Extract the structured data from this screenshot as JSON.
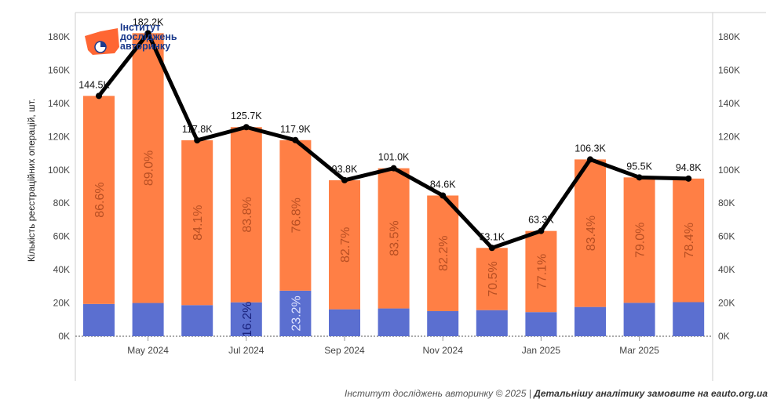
{
  "chart_data": {
    "type": "bar",
    "stacked": true,
    "ylabel": "Кількість реєстраційних операцій, шт.",
    "ylim": [
      0,
      180000
    ],
    "yticks": [
      "0K",
      "20K",
      "40K",
      "60K",
      "80K",
      "100K",
      "120K",
      "140K",
      "160K",
      "180K"
    ],
    "ytick_values": [
      0,
      20000,
      40000,
      60000,
      80000,
      100000,
      120000,
      140000,
      160000,
      180000
    ],
    "x_tick_labels": [
      {
        "index": 1,
        "label": "May 2024"
      },
      {
        "index": 3,
        "label": "Jul 2024"
      },
      {
        "index": 5,
        "label": "Sep 2024"
      },
      {
        "index": 7,
        "label": "Nov 2024"
      },
      {
        "index": 9,
        "label": "Jan 2025"
      },
      {
        "index": 11,
        "label": "Mar 2025"
      }
    ],
    "totals": [
      144500,
      182200,
      117800,
      125700,
      117900,
      93800,
      101000,
      84600,
      53100,
      63300,
      106300,
      95500,
      94800
    ],
    "total_labels": [
      "144.5K",
      "182.2K",
      "117.8K",
      "125.7K",
      "117.9K",
      "93.8K",
      "101.0K",
      "84.6K",
      "53.1K",
      "63.3K",
      "106.3K",
      "95.5K",
      "94.8K"
    ],
    "series": [
      {
        "values": [
          19400,
          20000,
          18700,
          20400,
          27400,
          16200,
          16700,
          15100,
          15700,
          14500,
          17600,
          20100,
          20500
        ],
        "color": "#5b6fd0",
        "labels": [
          "",
          "",
          "",
          "16.2%",
          "23.2%",
          "",
          "",
          "",
          "",
          "",
          "",
          "",
          ""
        ]
      },
      {
        "values": [
          125100,
          162200,
          99100,
          105300,
          90500,
          77600,
          84300,
          69500,
          37400,
          48800,
          88700,
          75400,
          74300
        ],
        "color": "#ff7f45",
        "labels": [
          "86.6%",
          "89.0%",
          "84.1%",
          "83.8%",
          "76.8%",
          "82.7%",
          "83.5%",
          "82.2%",
          "70.5%",
          "77.1%",
          "83.4%",
          "79.0%",
          "78.4%"
        ]
      }
    ],
    "line_color": "#000000"
  },
  "logo": {
    "line1": "Інститут",
    "line2": "досліджень",
    "line3": "авторинку"
  },
  "footer": {
    "left": "Інститут досліджень авторинку © 2025 | ",
    "right": "Детальнішу аналітику замовите на eauto.org.ua"
  }
}
